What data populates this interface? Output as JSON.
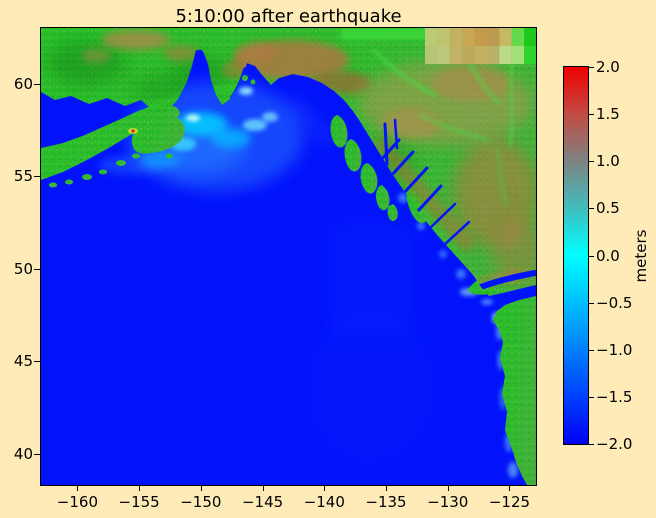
{
  "figure": {
    "title": "5:10:00 after earthquake",
    "background_color": "#FFEBB7"
  },
  "chart_data": {
    "type": "heatmap",
    "title": "5:10:00 after earthquake",
    "x_axis": {
      "ticks": [
        -160,
        -155,
        -150,
        -145,
        -140,
        -135,
        -130,
        -125
      ],
      "labels": [
        "−160",
        "−155",
        "−150",
        "−145",
        "−140",
        "−135",
        "−130",
        "−125"
      ],
      "range": [
        -162.95,
        -122.85
      ]
    },
    "y_axis": {
      "ticks": [
        60,
        55,
        50,
        45,
        40
      ],
      "labels": [
        "60",
        "55",
        "50",
        "45",
        "40"
      ],
      "range": [
        38.33,
        63.0
      ]
    },
    "colorbar": {
      "label": "meters",
      "ticks": [
        2.0,
        1.5,
        1.0,
        0.5,
        0.0,
        -0.5,
        -1.0,
        -1.5,
        -2.0
      ],
      "labels": [
        "2.0",
        "1.5",
        "1.0",
        "0.5",
        "0.0",
        "−0.5",
        "−1.0",
        "−1.5",
        "−2.0"
      ],
      "vmin": -2.0,
      "vmax": 2.0,
      "gradient_stops": [
        "#f00000",
        "#7d8482",
        "#00ffff",
        "#0202f0"
      ]
    },
    "description": "Tsunami wave-height map of the Gulf of Alaska and northeast Pacific 5:10:00 after an earthquake. Open ocean is saturated at the deep-blue end of the colormap; light cyan wave disturbances radiate near Kodiak Island, the Kenai Peninsula, Prince William Sound and along the British Columbia / Washington / Oregon coasts. Land topography is shown in greens (lowlands) and browns (mountains), with a coarse-resolution pixel band along the top-right edge."
  },
  "colors": {
    "background": "#FFEBB7",
    "ocean": "#0213FB",
    "land_green": "#2DBA2D",
    "mountain_brown": "#AE7742",
    "wave_cyan": "#00DFFF"
  }
}
